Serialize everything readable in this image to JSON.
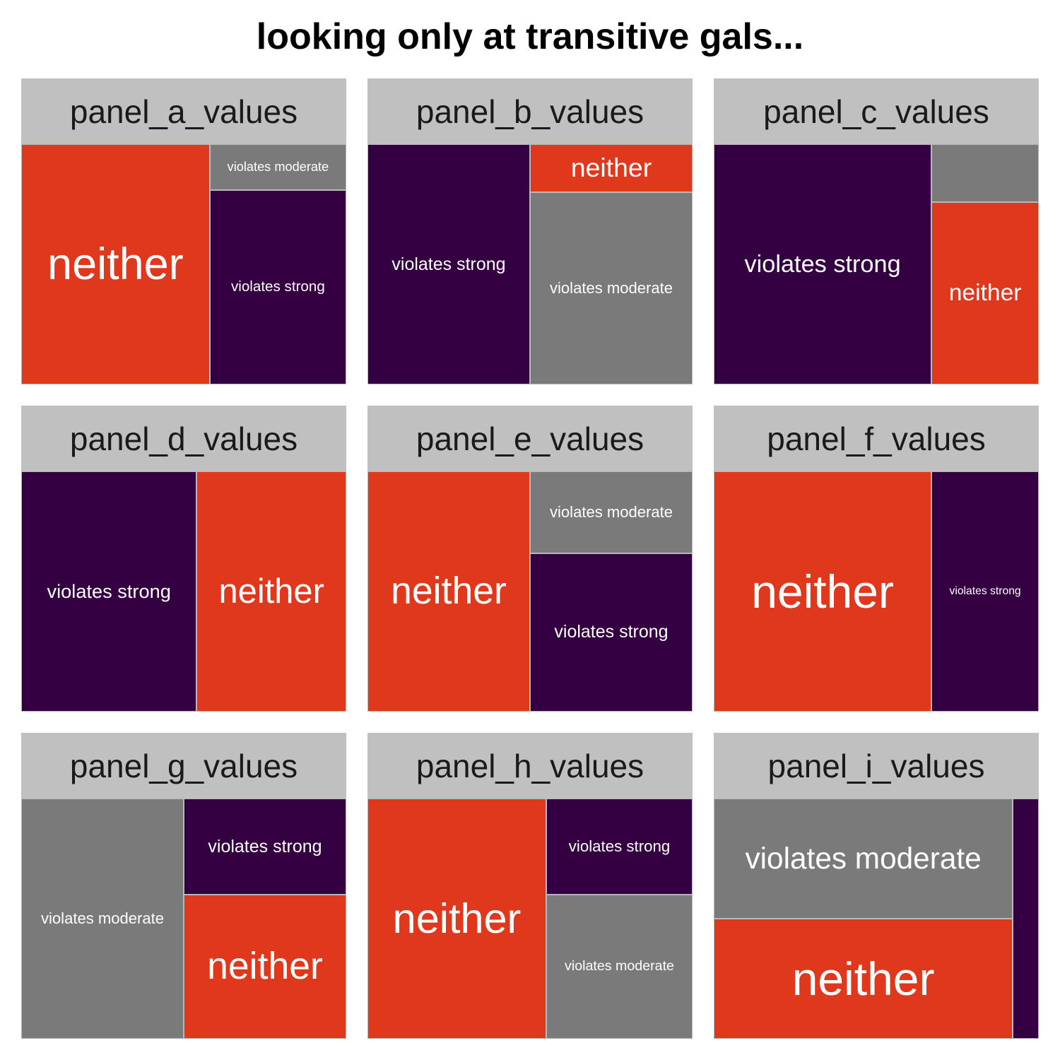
{
  "title": "looking only at transitive gals...",
  "colors": {
    "neither": "#E0381C",
    "violates moderate": "#7A7A7A",
    "violates strong": "#350041",
    "strip_background": "#C0C0C0"
  },
  "chart_data": {
    "type": "treemap",
    "title": "looking only at transitive gals...",
    "facets": [
      {
        "panel": "panel_a_values",
        "tiles": [
          {
            "category": "neither",
            "value": 58,
            "label": "neither"
          },
          {
            "category": "violates moderate",
            "value": 8,
            "label": "violates moderate"
          },
          {
            "category": "violates strong",
            "value": 34,
            "label": "violates strong"
          }
        ]
      },
      {
        "panel": "panel_b_values",
        "tiles": [
          {
            "category": "violates strong",
            "value": 50,
            "label": "violates strong"
          },
          {
            "category": "neither",
            "value": 10,
            "label": "neither"
          },
          {
            "category": "violates moderate",
            "value": 40,
            "label": "violates moderate"
          }
        ]
      },
      {
        "panel": "panel_c_values",
        "tiles": [
          {
            "category": "violates strong",
            "value": 67,
            "label": "violates strong"
          },
          {
            "category": "violates moderate",
            "value": 8,
            "label": ""
          },
          {
            "category": "neither",
            "value": 25,
            "label": "neither"
          }
        ]
      },
      {
        "panel": "panel_d_values",
        "tiles": [
          {
            "category": "violates strong",
            "value": 54,
            "label": "violates strong"
          },
          {
            "category": "neither",
            "value": 46,
            "label": "neither"
          }
        ]
      },
      {
        "panel": "panel_e_values",
        "tiles": [
          {
            "category": "neither",
            "value": 50,
            "label": "neither"
          },
          {
            "category": "violates moderate",
            "value": 17,
            "label": "violates moderate"
          },
          {
            "category": "violates strong",
            "value": 33,
            "label": "violates strong"
          }
        ]
      },
      {
        "panel": "panel_f_values",
        "tiles": [
          {
            "category": "neither",
            "value": 67,
            "label": "neither"
          },
          {
            "category": "violates strong",
            "value": 33,
            "label": "violates strong"
          }
        ]
      },
      {
        "panel": "panel_g_values",
        "tiles": [
          {
            "category": "violates moderate",
            "value": 50,
            "label": "violates moderate"
          },
          {
            "category": "violates strong",
            "value": 20,
            "label": "violates strong"
          },
          {
            "category": "neither",
            "value": 30,
            "label": "neither"
          }
        ]
      },
      {
        "panel": "panel_h_values",
        "tiles": [
          {
            "category": "neither",
            "value": 55,
            "label": "neither"
          },
          {
            "category": "violates strong",
            "value": 18,
            "label": "violates strong"
          },
          {
            "category": "violates moderate",
            "value": 27,
            "label": "violates moderate"
          }
        ]
      },
      {
        "panel": "panel_i_values",
        "tiles": [
          {
            "category": "violates moderate",
            "value": 46,
            "label": "violates moderate"
          },
          {
            "category": "neither",
            "value": 46,
            "label": "neither"
          },
          {
            "category": "violates strong",
            "value": 8,
            "label": ""
          }
        ]
      }
    ]
  }
}
